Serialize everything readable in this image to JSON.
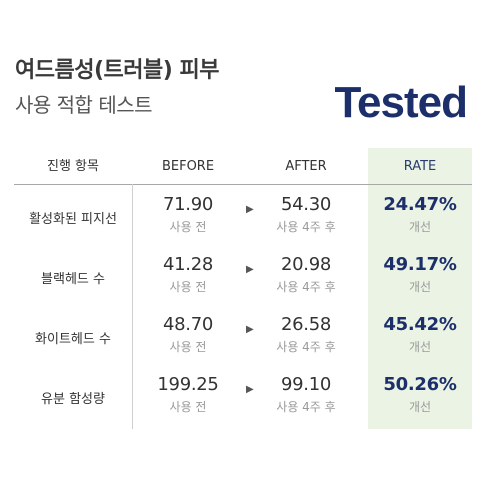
{
  "header": {
    "title": "여드름성(트러블) 피부",
    "subtitle": "사용 적합 테스트",
    "badge": "Tested"
  },
  "table": {
    "columns": {
      "item": "진행 항목",
      "before": "BEFORE",
      "after": "AFTER",
      "rate": "RATE"
    },
    "arrow_icon": "▶",
    "rows": [
      {
        "label": "활성화된 피지선",
        "before": "71.90",
        "before_note": "사용 전",
        "after": "54.30",
        "after_note": "사용 4주 후",
        "rate": "24.47%",
        "rate_note": "개선"
      },
      {
        "label": "블랙헤드 수",
        "before": "41.28",
        "before_note": "사용 전",
        "after": "20.98",
        "after_note": "사용 4주 후",
        "rate": "49.17%",
        "rate_note": "개선"
      },
      {
        "label": "화이트헤드 수",
        "before": "48.70",
        "before_note": "사용 전",
        "after": "26.58",
        "after_note": "사용 4주 후",
        "rate": "45.42%",
        "rate_note": "개선"
      },
      {
        "label": "유분 함성량",
        "before": "199.25",
        "before_note": "사용 전",
        "after": "99.10",
        "after_note": "사용 4주 후",
        "rate": "50.26%",
        "rate_note": "개선"
      }
    ]
  },
  "colors": {
    "accent": "#1c2f6b",
    "rate_background": "#eaf3e4"
  }
}
